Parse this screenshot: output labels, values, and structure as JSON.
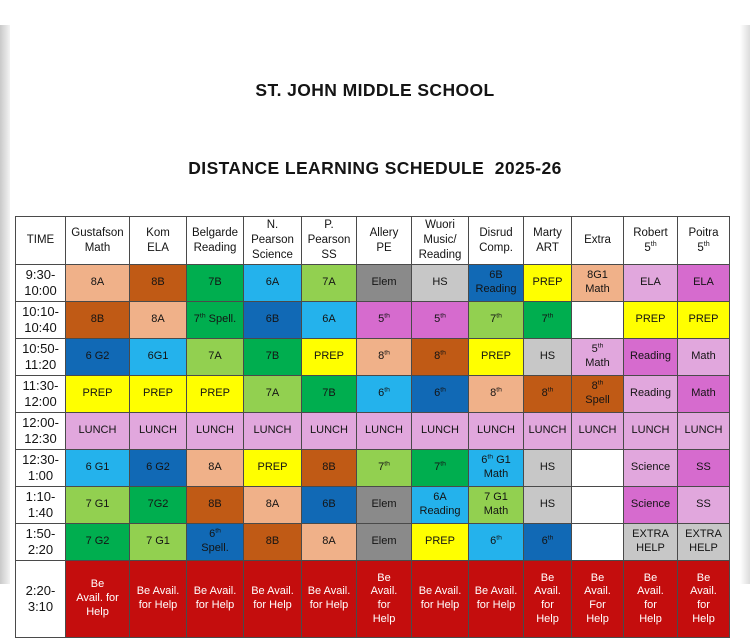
{
  "title": {
    "line1": "ST. JOHN MIDDLE SCHOOL",
    "line2": "DISTANCE LEARNING SCHEDULE  2025-26"
  },
  "palette": {
    "salmon": "#F0B189",
    "brown": "#C05A15",
    "green": "#00AE4F",
    "lightgreen": "#92D050",
    "cyan": "#24B2EC",
    "blue": "#1169B5",
    "yellow": "#FFFF00",
    "gray": "#8A8A8A",
    "lightgray": "#C7C7C7",
    "plum": "#E1A7DD",
    "orchid": "#D66BCE",
    "red": "#C40D0D",
    "white": "#FFFFFF"
  },
  "table": {
    "columns": [
      {
        "id": "time",
        "label": "TIME"
      },
      {
        "id": "gustafson-math",
        "label": "Gustafson\nMath"
      },
      {
        "id": "kom-ela",
        "label": "Kom\nELA"
      },
      {
        "id": "belgarde-reading",
        "label": "Belgarde\nReading"
      },
      {
        "id": "n-pearson-science",
        "label": "N.\nPearson\nScience"
      },
      {
        "id": "p-pearson-ss",
        "label": "P.\nPearson\nSS"
      },
      {
        "id": "allery-pe",
        "label": "Allery\nPE"
      },
      {
        "id": "wuori-music-reading",
        "label": "Wuori\nMusic/\nReading"
      },
      {
        "id": "disrud-comp",
        "label": "Disrud\nComp."
      },
      {
        "id": "marty-art",
        "label": "Marty\nART"
      },
      {
        "id": "extra",
        "label": "Extra"
      },
      {
        "id": "robert-5th",
        "label": "Robert\n5{th}"
      },
      {
        "id": "poitra-5th",
        "label": "Poitra\n5{th}"
      }
    ],
    "rows": [
      {
        "time": "9:30-\n10:00",
        "cells": [
          {
            "text": "8A",
            "color": "salmon"
          },
          {
            "text": "8B",
            "color": "brown"
          },
          {
            "text": "7B",
            "color": "green"
          },
          {
            "text": "6A",
            "color": "cyan"
          },
          {
            "text": "7A",
            "color": "lightgreen"
          },
          {
            "text": "Elem",
            "color": "gray"
          },
          {
            "text": "HS",
            "color": "lightgray"
          },
          {
            "text": "6B\nReading",
            "color": "blue"
          },
          {
            "text": "PREP",
            "color": "yellow"
          },
          {
            "text": "8G1\nMath",
            "color": "salmon"
          },
          {
            "text": "ELA",
            "color": "plum"
          },
          {
            "text": "ELA",
            "color": "orchid"
          }
        ]
      },
      {
        "time": "10:10-\n10:40",
        "cells": [
          {
            "text": "8B",
            "color": "brown"
          },
          {
            "text": "8A",
            "color": "salmon"
          },
          {
            "text": "7{th} Spell.",
            "color": "green"
          },
          {
            "text": "6B",
            "color": "blue"
          },
          {
            "text": "6A",
            "color": "cyan"
          },
          {
            "text": "5{th}",
            "color": "orchid"
          },
          {
            "text": "5{th}",
            "color": "orchid"
          },
          {
            "text": "7{th}",
            "color": "lightgreen"
          },
          {
            "text": "7{th}",
            "color": "green"
          },
          {
            "text": "",
            "color": "white"
          },
          {
            "text": "PREP",
            "color": "yellow"
          },
          {
            "text": "PREP",
            "color": "yellow"
          }
        ]
      },
      {
        "time": "10:50-\n11:20",
        "cells": [
          {
            "text": "6 G2",
            "color": "blue"
          },
          {
            "text": "6G1",
            "color": "cyan"
          },
          {
            "text": "7A",
            "color": "lightgreen"
          },
          {
            "text": "7B",
            "color": "green"
          },
          {
            "text": "PREP",
            "color": "yellow"
          },
          {
            "text": "8{th}",
            "color": "salmon"
          },
          {
            "text": "8{th}",
            "color": "brown"
          },
          {
            "text": "PREP",
            "color": "yellow"
          },
          {
            "text": "HS",
            "color": "lightgray"
          },
          {
            "text": "5{th}\nMath",
            "color": "plum"
          },
          {
            "text": "Reading",
            "color": "orchid"
          },
          {
            "text": "Math",
            "color": "plum"
          }
        ]
      },
      {
        "time": "11:30-\n12:00",
        "cells": [
          {
            "text": "PREP",
            "color": "yellow"
          },
          {
            "text": "PREP",
            "color": "yellow"
          },
          {
            "text": "PREP",
            "color": "yellow"
          },
          {
            "text": "7A",
            "color": "lightgreen"
          },
          {
            "text": "7B",
            "color": "green"
          },
          {
            "text": "6{th}",
            "color": "cyan"
          },
          {
            "text": "6{th}",
            "color": "blue"
          },
          {
            "text": "8{th}",
            "color": "salmon"
          },
          {
            "text": "8{th}",
            "color": "brown"
          },
          {
            "text": "8{th}\nSpell",
            "color": "brown"
          },
          {
            "text": "Reading",
            "color": "plum"
          },
          {
            "text": "Math",
            "color": "orchid"
          }
        ]
      },
      {
        "time": "12:00-\n12:30",
        "cells": [
          {
            "text": "LUNCH",
            "color": "plum"
          },
          {
            "text": "LUNCH",
            "color": "plum"
          },
          {
            "text": "LUNCH",
            "color": "plum"
          },
          {
            "text": "LUNCH",
            "color": "plum"
          },
          {
            "text": "LUNCH",
            "color": "plum"
          },
          {
            "text": "LUNCH",
            "color": "plum"
          },
          {
            "text": "LUNCH",
            "color": "plum"
          },
          {
            "text": "LUNCH",
            "color": "plum"
          },
          {
            "text": "LUNCH",
            "color": "plum"
          },
          {
            "text": "LUNCH",
            "color": "plum"
          },
          {
            "text": "LUNCH",
            "color": "plum"
          },
          {
            "text": "LUNCH",
            "color": "plum"
          }
        ]
      },
      {
        "time": "12:30-\n1:00",
        "cells": [
          {
            "text": "6 G1",
            "color": "cyan"
          },
          {
            "text": "6 G2",
            "color": "blue"
          },
          {
            "text": "8A",
            "color": "salmon"
          },
          {
            "text": "PREP",
            "color": "yellow"
          },
          {
            "text": "8B",
            "color": "brown"
          },
          {
            "text": "7{th}",
            "color": "lightgreen"
          },
          {
            "text": "7{th}",
            "color": "green"
          },
          {
            "text": "6{th} G1\nMath",
            "color": "cyan"
          },
          {
            "text": "HS",
            "color": "lightgray"
          },
          {
            "text": "",
            "color": "white"
          },
          {
            "text": "Science",
            "color": "plum"
          },
          {
            "text": "SS",
            "color": "orchid"
          }
        ]
      },
      {
        "time": "1:10-\n1:40",
        "cells": [
          {
            "text": "7 G1",
            "color": "lightgreen"
          },
          {
            "text": "7G2",
            "color": "green"
          },
          {
            "text": "8B",
            "color": "brown"
          },
          {
            "text": "8A",
            "color": "salmon"
          },
          {
            "text": "6B",
            "color": "blue"
          },
          {
            "text": "Elem",
            "color": "gray"
          },
          {
            "text": "6A\nReading",
            "color": "cyan"
          },
          {
            "text": "7 G1\nMath",
            "color": "lightgreen"
          },
          {
            "text": "HS",
            "color": "lightgray"
          },
          {
            "text": "",
            "color": "white"
          },
          {
            "text": "Science",
            "color": "orchid"
          },
          {
            "text": "SS",
            "color": "plum"
          }
        ]
      },
      {
        "time": "1:50-\n2:20",
        "cells": [
          {
            "text": "7 G2",
            "color": "green"
          },
          {
            "text": "7 G1",
            "color": "lightgreen"
          },
          {
            "text": "6{th}\nSpell.",
            "color": "blue"
          },
          {
            "text": "8B",
            "color": "brown"
          },
          {
            "text": "8A",
            "color": "salmon"
          },
          {
            "text": "Elem",
            "color": "gray"
          },
          {
            "text": "PREP",
            "color": "yellow"
          },
          {
            "text": "6{th}",
            "color": "cyan"
          },
          {
            "text": "6{th}",
            "color": "blue"
          },
          {
            "text": "",
            "color": "white"
          },
          {
            "text": "EXTRA\nHELP",
            "color": "lightgray"
          },
          {
            "text": "EXTRA\nHELP",
            "color": "lightgray"
          }
        ]
      },
      {
        "time": "2:20-\n3:10",
        "cells": [
          {
            "text": "Be\nAvail. for\nHelp",
            "color": "red"
          },
          {
            "text": "Be Avail.\nfor Help",
            "color": "red"
          },
          {
            "text": "Be Avail.\nfor Help",
            "color": "red"
          },
          {
            "text": "Be Avail.\nfor Help",
            "color": "red"
          },
          {
            "text": "Be Avail.\nfor Help",
            "color": "red"
          },
          {
            "text": "Be\nAvail.\nfor\nHelp",
            "color": "red"
          },
          {
            "text": "Be Avail.\nfor Help",
            "color": "red"
          },
          {
            "text": "Be Avail.\nfor Help",
            "color": "red"
          },
          {
            "text": "Be\nAvail.\nfor\nHelp",
            "color": "red"
          },
          {
            "text": "Be\nAvail.\nFor\nHelp",
            "color": "red"
          },
          {
            "text": "Be\nAvail.\nfor\nHelp",
            "color": "red"
          },
          {
            "text": "Be\nAvail.\nfor\nHelp",
            "color": "red"
          }
        ]
      }
    ]
  }
}
